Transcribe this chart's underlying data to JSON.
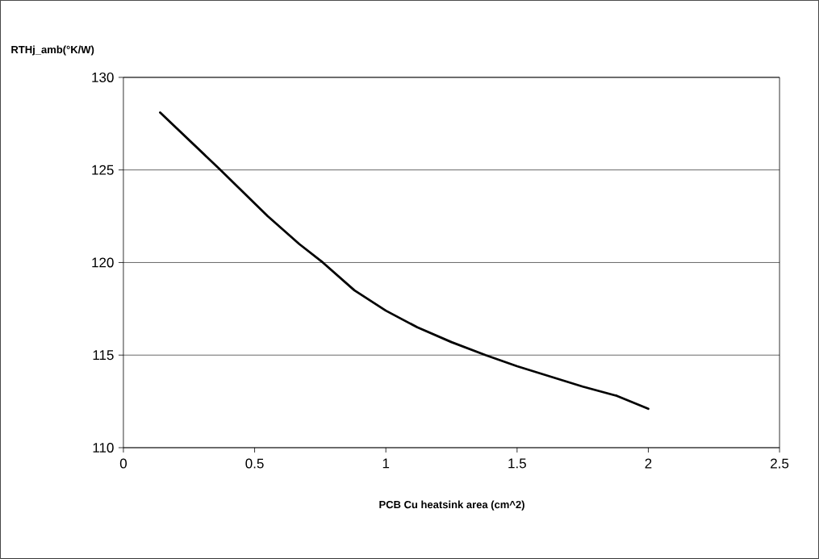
{
  "chart_data": {
    "type": "line",
    "xlabel": "PCB Cu heatsink area (cm^2)",
    "ylabel": "RTHj_amb(°K/W)",
    "x": [
      0.14,
      0.37,
      0.55,
      0.67,
      0.76,
      0.88,
      1.0,
      1.12,
      1.25,
      1.38,
      1.5,
      1.75,
      1.88,
      2.0
    ],
    "values": [
      128.1,
      125.0,
      122.5,
      121.0,
      120.0,
      118.5,
      117.4,
      116.5,
      115.7,
      115.0,
      114.4,
      113.3,
      112.8,
      112.1
    ],
    "color": "#000000",
    "xlim": [
      0,
      2.5
    ],
    "ylim": [
      110,
      130
    ],
    "xticks": [
      0,
      0.5,
      1,
      1.5,
      2,
      2.5
    ],
    "yticks": [
      110,
      115,
      120,
      125,
      130
    ],
    "grid": "y",
    "marker": "none",
    "line_style": "solid"
  }
}
